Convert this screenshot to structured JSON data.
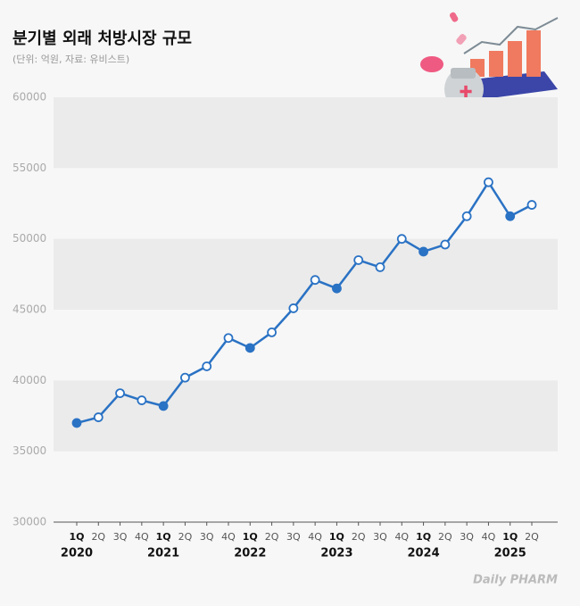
{
  "chart_data": {
    "type": "line",
    "title": "분기별 외래 처방시장 규모",
    "subtitle": "(단위: 억원, 자료: 유비스트)",
    "logo": "Daily PHARM",
    "categories": [
      "1Q",
      "2Q",
      "3Q",
      "4Q",
      "1Q",
      "2Q",
      "3Q",
      "4Q",
      "1Q",
      "2Q",
      "3Q",
      "4Q",
      "1Q",
      "2Q",
      "3Q",
      "4Q",
      "1Q",
      "2Q",
      "3Q",
      "4Q",
      "1Q",
      "2Q"
    ],
    "years": [
      "2020",
      "2021",
      "2022",
      "2023",
      "2024",
      "2025"
    ],
    "series": [
      {
        "color": "#2a72c4",
        "values": [
          37000,
          37400,
          39100,
          38600,
          38200,
          40200,
          41000,
          43000,
          42300,
          43400,
          45100,
          47100,
          46500,
          48500,
          48000,
          50000,
          49100,
          49600,
          51600,
          54000,
          51600,
          52400
        ]
      }
    ],
    "ylim": [
      30000,
      60000
    ],
    "yticks": [
      30000,
      35000,
      40000,
      45000,
      50000,
      55000,
      60000
    ],
    "grid": true
  }
}
